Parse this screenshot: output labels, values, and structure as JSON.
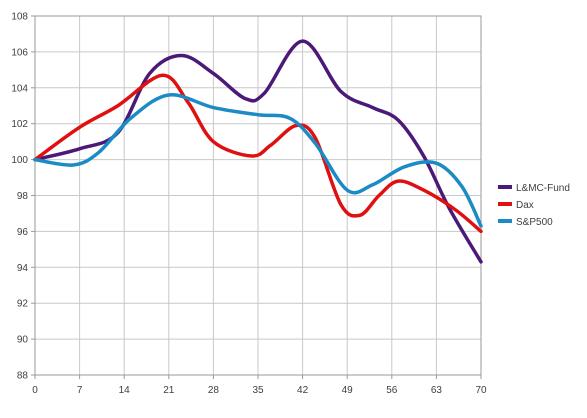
{
  "chart_data": {
    "type": "line",
    "title": "",
    "xlabel": "",
    "ylabel": "",
    "x": [
      0,
      7,
      14,
      21,
      28,
      35,
      42,
      49,
      56,
      63,
      70
    ],
    "xticks": [
      "0",
      "7",
      "14",
      "21",
      "28",
      "35",
      "42",
      "49",
      "56",
      "63",
      "70"
    ],
    "yticks": [
      "88",
      "90",
      "92",
      "94",
      "96",
      "98",
      "100",
      "102",
      "104",
      "106",
      "108"
    ],
    "xlim": [
      0,
      70
    ],
    "ylim": [
      88,
      108
    ],
    "grid": true,
    "legend_position": "right",
    "series": [
      {
        "name": "L&MC-Fund",
        "color": "#4B1A78",
        "points": [
          [
            0,
            100.0
          ],
          [
            7,
            100.6
          ],
          [
            13,
            101.5
          ],
          [
            18,
            104.8
          ],
          [
            23,
            105.8
          ],
          [
            28,
            104.8
          ],
          [
            33,
            103.4
          ],
          [
            36,
            103.7
          ],
          [
            42,
            106.6
          ],
          [
            48,
            103.8
          ],
          [
            53,
            102.9
          ],
          [
            57,
            102.2
          ],
          [
            61,
            100.2
          ],
          [
            65,
            97.3
          ],
          [
            70,
            94.3
          ]
        ]
      },
      {
        "name": "Dax",
        "color": "#E01010",
        "points": [
          [
            0,
            100.0
          ],
          [
            7,
            101.8
          ],
          [
            13,
            103.0
          ],
          [
            20,
            104.7
          ],
          [
            24,
            103.2
          ],
          [
            28,
            101.0
          ],
          [
            34,
            100.2
          ],
          [
            37,
            100.8
          ],
          [
            41,
            101.9
          ],
          [
            44,
            101.2
          ],
          [
            48,
            97.5
          ],
          [
            51,
            96.9
          ],
          [
            54,
            98.0
          ],
          [
            57,
            98.8
          ],
          [
            61,
            98.3
          ],
          [
            66,
            97.2
          ],
          [
            70,
            96.0
          ]
        ]
      },
      {
        "name": "S&P500",
        "color": "#1A8BC5",
        "points": [
          [
            0,
            100.0
          ],
          [
            6,
            99.7
          ],
          [
            10,
            100.4
          ],
          [
            15,
            102.3
          ],
          [
            21,
            103.6
          ],
          [
            28,
            102.9
          ],
          [
            35,
            102.5
          ],
          [
            40,
            102.3
          ],
          [
            44,
            100.9
          ],
          [
            49,
            98.3
          ],
          [
            53,
            98.6
          ],
          [
            58,
            99.6
          ],
          [
            63,
            99.8
          ],
          [
            67,
            98.5
          ],
          [
            70,
            96.3
          ]
        ]
      }
    ]
  }
}
